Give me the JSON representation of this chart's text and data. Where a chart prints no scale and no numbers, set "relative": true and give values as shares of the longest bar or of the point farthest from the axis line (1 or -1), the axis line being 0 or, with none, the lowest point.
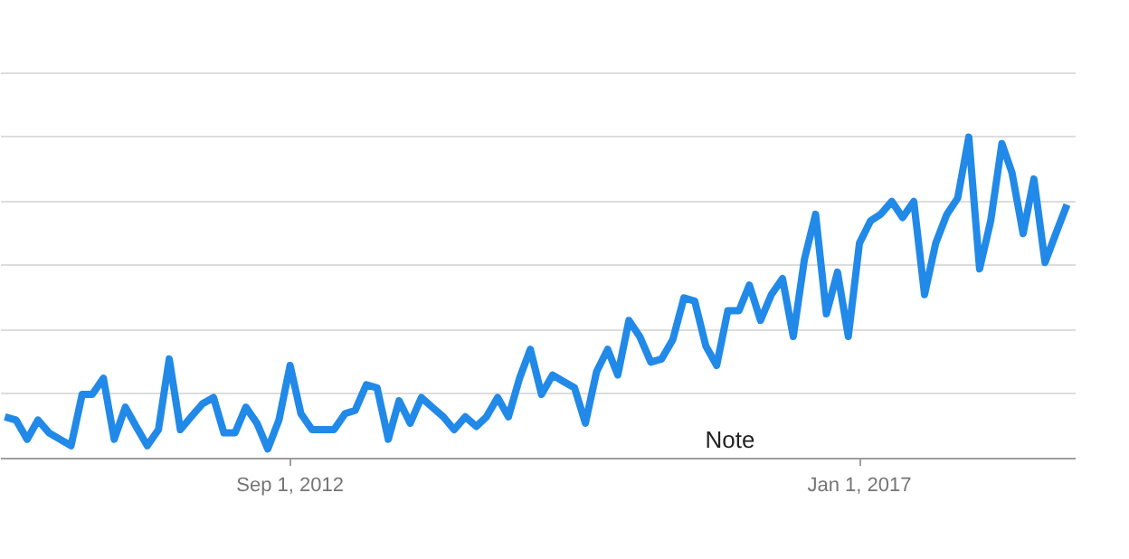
{
  "chart_data": {
    "type": "line",
    "relative": true,
    "grid": "y",
    "line_style": "solid",
    "marker": "none",
    "xlim": [
      "2010-06-20",
      "2018-08-25"
    ],
    "xticks": [
      {
        "value": "2012-09-01",
        "label": "Sep 1, 2012"
      },
      {
        "value": "2017-01-01",
        "label": "Jan 1, 2017"
      }
    ],
    "annotations": [
      "Note"
    ],
    "x": [
      "2010-07",
      "2010-08",
      "2010-09",
      "2010-10",
      "2010-11",
      "2010-12",
      "2011-01",
      "2011-02",
      "2011-03",
      "2011-04",
      "2011-05",
      "2011-06",
      "2011-07",
      "2011-08",
      "2011-09",
      "2011-10",
      "2011-11",
      "2011-12",
      "2012-01",
      "2012-02",
      "2012-03",
      "2012-04",
      "2012-05",
      "2012-06",
      "2012-07",
      "2012-08",
      "2012-09",
      "2012-10",
      "2012-11",
      "2012-12",
      "2013-01",
      "2013-02",
      "2013-03",
      "2013-04",
      "2013-05",
      "2013-06",
      "2013-07",
      "2013-08",
      "2013-09",
      "2013-10",
      "2013-11",
      "2013-12",
      "2014-01",
      "2014-02",
      "2014-03",
      "2014-04",
      "2014-05",
      "2014-06",
      "2014-07",
      "2014-08",
      "2014-09",
      "2014-10",
      "2014-11",
      "2014-12",
      "2015-01",
      "2015-02",
      "2015-03",
      "2015-04",
      "2015-05",
      "2015-06",
      "2015-07",
      "2015-08",
      "2015-09",
      "2015-10",
      "2015-11",
      "2015-12",
      "2016-01",
      "2016-02",
      "2016-03",
      "2016-04",
      "2016-05",
      "2016-06",
      "2016-07",
      "2016-08",
      "2016-09",
      "2016-10",
      "2016-11",
      "2016-12",
      "2017-01",
      "2017-02",
      "2017-03",
      "2017-04",
      "2017-05",
      "2017-06",
      "2017-07",
      "2017-08",
      "2017-09",
      "2017-10",
      "2017-11",
      "2017-12",
      "2018-01",
      "2018-02",
      "2018-03",
      "2018-04",
      "2018-05",
      "2018-06",
      "2018-07",
      "2018-08"
    ],
    "series": [
      {
        "color": "#2189e8",
        "values": [
          0.13,
          0.12,
          0.06,
          0.12,
          0.08,
          0.06,
          0.04,
          0.2,
          0.2,
          0.25,
          0.06,
          0.16,
          0.1,
          0.04,
          0.09,
          0.31,
          0.09,
          0.13,
          0.17,
          0.19,
          0.08,
          0.08,
          0.16,
          0.11,
          0.03,
          0.12,
          0.29,
          0.14,
          0.09,
          0.09,
          0.09,
          0.14,
          0.15,
          0.23,
          0.22,
          0.06,
          0.18,
          0.11,
          0.19,
          0.16,
          0.13,
          0.09,
          0.13,
          0.1,
          0.13,
          0.19,
          0.13,
          0.25,
          0.34,
          0.2,
          0.26,
          0.24,
          0.22,
          0.11,
          0.27,
          0.34,
          0.26,
          0.43,
          0.38,
          0.3,
          0.31,
          0.37,
          0.5,
          0.49,
          0.35,
          0.29,
          0.46,
          0.46,
          0.54,
          0.43,
          0.51,
          0.56,
          0.38,
          0.62,
          0.76,
          0.45,
          0.58,
          0.38,
          0.67,
          0.74,
          0.76,
          0.8,
          0.75,
          0.8,
          0.51,
          0.67,
          0.76,
          0.81,
          1,
          0.59,
          0.74,
          0.98,
          0.89,
          0.7,
          0.87,
          0.61,
          0.7,
          0.79
        ]
      }
    ]
  }
}
